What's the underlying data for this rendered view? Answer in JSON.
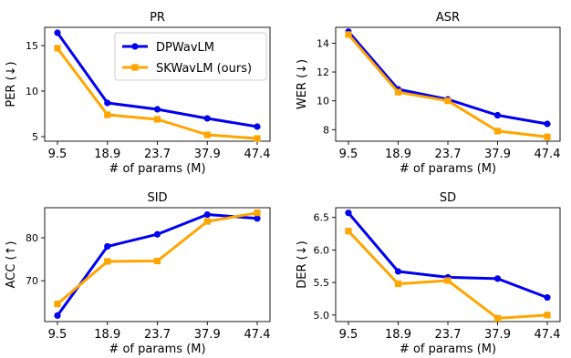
{
  "colors": {
    "DPWavLM": "#0000ee",
    "SKWavLM": "#ffa500"
  },
  "chart_data": [
    {
      "type": "line",
      "title": "PR",
      "xlabel": "# of params (M)",
      "ylabel": "PER (↓)",
      "categories": [
        "9.5",
        "18.9",
        "23.7",
        "37.9",
        "47.4"
      ],
      "ylim": [
        4.5,
        17.0
      ],
      "yticks": [
        5,
        10,
        15
      ],
      "series": [
        {
          "name": "DPWavLM",
          "values": [
            16.4,
            8.7,
            8.0,
            7.0,
            6.1
          ]
        },
        {
          "name": "SKWavLM (ours)",
          "values": [
            14.7,
            7.4,
            6.9,
            5.2,
            4.8
          ]
        }
      ],
      "legend": "top-right"
    },
    {
      "type": "line",
      "title": "ASR",
      "xlabel": "# of params (M)",
      "ylabel": "WER (↓)",
      "categories": [
        "9.5",
        "18.9",
        "23.7",
        "37.9",
        "47.4"
      ],
      "ylim": [
        7.2,
        15.1
      ],
      "yticks": [
        8,
        10,
        12,
        14
      ],
      "series": [
        {
          "name": "DPWavLM",
          "values": [
            14.8,
            10.8,
            10.1,
            9.0,
            8.4
          ]
        },
        {
          "name": "SKWavLM (ours)",
          "values": [
            14.6,
            10.6,
            10.0,
            7.9,
            7.5
          ]
        }
      ]
    },
    {
      "type": "line",
      "title": "SID",
      "xlabel": "# of params (M)",
      "ylabel": "ACC (↑)",
      "categories": [
        "9.5",
        "18.9",
        "23.7",
        "37.9",
        "47.4"
      ],
      "ylim": [
        60.5,
        87.0
      ],
      "yticks": [
        70,
        80
      ],
      "series": [
        {
          "name": "DPWavLM",
          "values": [
            61.9,
            78.0,
            80.8,
            85.4,
            84.5
          ]
        },
        {
          "name": "SKWavLM (ours)",
          "values": [
            64.6,
            74.5,
            74.6,
            83.8,
            85.8
          ]
        }
      ]
    },
    {
      "type": "line",
      "title": "SD",
      "xlabel": "# of params (M)",
      "ylabel": "DER (↓)",
      "categories": [
        "9.5",
        "18.9",
        "23.7",
        "37.9",
        "47.4"
      ],
      "ylim": [
        4.9,
        6.65
      ],
      "yticks": [
        5.0,
        5.5,
        6.0,
        6.5
      ],
      "ytick_labels": [
        "5.0",
        "5.5",
        "6.0",
        "6.5"
      ],
      "series": [
        {
          "name": "DPWavLM",
          "values": [
            6.57,
            5.67,
            5.58,
            5.56,
            5.27
          ]
        },
        {
          "name": "SKWavLM (ours)",
          "values": [
            6.29,
            5.48,
            5.53,
            4.95,
            5.0
          ]
        }
      ]
    }
  ]
}
